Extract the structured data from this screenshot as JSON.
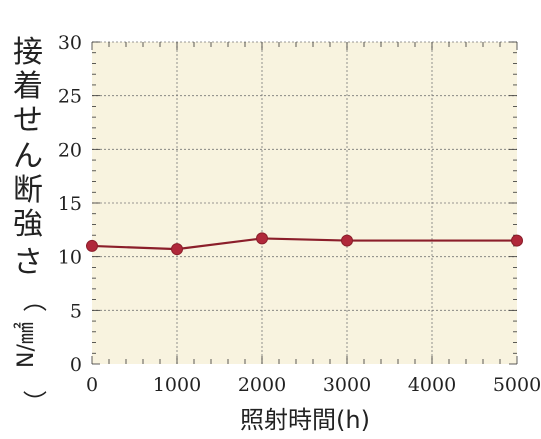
{
  "chart_data": {
    "type": "line",
    "title": "",
    "xlabel": "照射時間(h)",
    "ylabel_chars": [
      "接",
      "着",
      "せ",
      "ん",
      "断",
      "強",
      "さ",
      "（",
      "N/㎟",
      "）"
    ],
    "x": [
      0,
      1000,
      2000,
      3000,
      5000
    ],
    "series": [
      {
        "values": [
          11.0,
          10.7,
          11.7,
          11.5,
          11.5
        ]
      }
    ],
    "xlim": [
      0,
      5000
    ],
    "ylim": [
      0,
      30
    ],
    "xticks": [
      0,
      1000,
      2000,
      3000,
      4000,
      5000
    ],
    "yticks": [
      0,
      5,
      10,
      15,
      20,
      25,
      30
    ],
    "grid": true,
    "legend": "none",
    "colors": {
      "plot_bg": "#f8f3df",
      "grid": "#777777",
      "line": "#8b1e2a",
      "marker": "#b0283a",
      "frame": "#333333"
    }
  }
}
